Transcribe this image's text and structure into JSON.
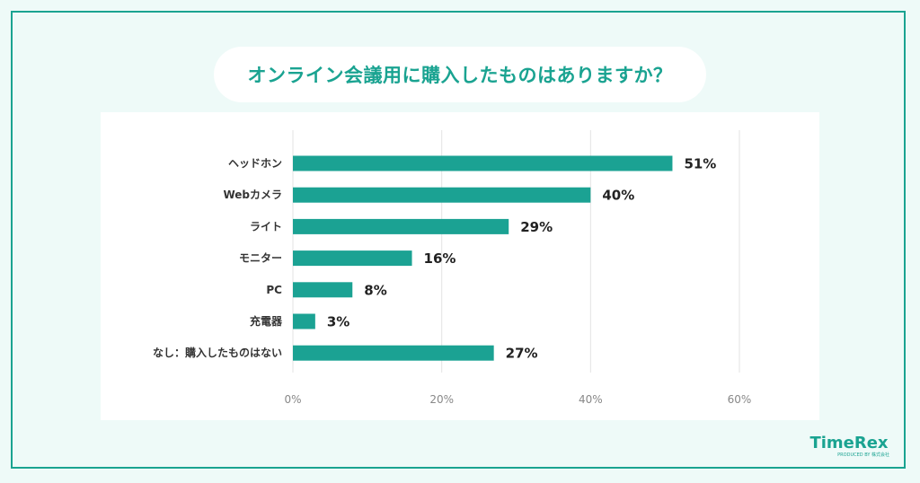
{
  "title": "オンライン会議用に購入したものはありますか？",
  "logo": {
    "brand": "TimeRex",
    "sub": "PRODUCED BY 株式会社"
  },
  "colors": {
    "bar": "#1ba293",
    "accent": "#1aa391",
    "grid": "#e3e3e3"
  },
  "chart_data": {
    "type": "bar",
    "orientation": "horizontal",
    "categories": [
      "ヘッドホン",
      "Webカメラ",
      "ライト",
      "モニター",
      "PC",
      "充電器",
      "なし：購入したものはない"
    ],
    "values": [
      51,
      40,
      29,
      16,
      8,
      3,
      27
    ],
    "value_labels": [
      "51%",
      "40%",
      "29%",
      "16%",
      "8%",
      "3%",
      "27%"
    ],
    "xlim": [
      0,
      60
    ],
    "xticks": [
      0,
      20,
      40,
      60
    ],
    "xtick_labels": [
      "0%",
      "20%",
      "40%",
      "60%"
    ],
    "grid": true
  }
}
